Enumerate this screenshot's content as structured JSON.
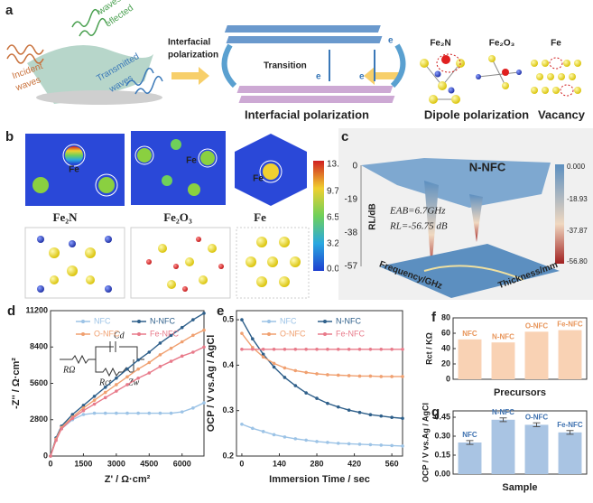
{
  "panel_a": {
    "letter": "a",
    "incident": [
      "Incident",
      "waves"
    ],
    "reflected": [
      "waves",
      "eflected"
    ],
    "transmitted": [
      "Transmitted",
      "waves"
    ],
    "interfacial_arrow": [
      "Interfacial",
      "polarization"
    ],
    "transition": "Transition",
    "electron": "e",
    "interfacial_caption": "Interfacial polarization",
    "structures": [
      "Fe₂N",
      "Fe₂O₃",
      "Fe"
    ],
    "dipole_caption": "Dipole polarization",
    "vacancy_caption": "Vacancy"
  },
  "panel_b": {
    "letter": "b",
    "atom_label": "Fe",
    "names": [
      "Fe₂N",
      "Fe₂O₃",
      "Fe"
    ],
    "colorbar": [
      "13.00",
      "9.75",
      "6.50",
      "3.25",
      "0.00"
    ]
  },
  "panel_c": {
    "letter": "c",
    "sample": "N-NFC",
    "eab": "EAB=6.7GHz",
    "rl": "RL=-56.75 dB",
    "zlabel": "RL/dB",
    "xlabel": "Frequency/GHz",
    "ylabel": "Thickness/mm",
    "zticks": [
      "0",
      "-19",
      "-38",
      "-57"
    ],
    "colorbar": [
      "0.000",
      "-18.93",
      "-37.87",
      "-56.80"
    ]
  },
  "circuit": [
    "RΩ",
    "Cd",
    "Rct",
    "Zw"
  ],
  "chart_data": [
    {
      "type": "line",
      "label": "d",
      "xlabel": "Z' / Ω·cm²",
      "ylabel": "-Z'' / Ω·cm²",
      "x": [
        0,
        250,
        500,
        1000,
        1500,
        2000,
        2500,
        3000,
        3500,
        4000,
        4500,
        5000,
        5500,
        6000,
        6500,
        7000
      ],
      "xlim": [
        0,
        7000
      ],
      "xticks": [
        0,
        1500,
        3000,
        4500,
        6000
      ],
      "ylim": [
        0,
        11200
      ],
      "yticks": [
        0,
        2800,
        5600,
        8400,
        11200
      ],
      "series": [
        {
          "name": "NFC",
          "color": "#9cc3e6",
          "values": [
            0,
            1300,
            2100,
            2800,
            3200,
            3300,
            3300,
            3300,
            3300,
            3300,
            3300,
            3300,
            3300,
            3400,
            3700,
            4100
          ]
        },
        {
          "name": "N-NFC",
          "color": "#2e5f8a",
          "values": [
            0,
            1400,
            2300,
            3200,
            3900,
            4600,
            5300,
            6000,
            6700,
            7400,
            8000,
            8700,
            9300,
            9900,
            10500,
            11000
          ]
        },
        {
          "name": "O-NFC",
          "color": "#f0a070",
          "values": [
            0,
            1300,
            2200,
            3000,
            3700,
            4300,
            4900,
            5500,
            6100,
            6700,
            7200,
            7800,
            8300,
            8800,
            9300,
            9700
          ]
        },
        {
          "name": "Fe-NFC",
          "color": "#e87a8a",
          "values": [
            0,
            1200,
            2100,
            2900,
            3500,
            4000,
            4500,
            5000,
            5500,
            6000,
            6400,
            6900,
            7300,
            7700,
            8000,
            8400
          ]
        }
      ]
    },
    {
      "type": "line",
      "label": "e",
      "xlabel": "Immersion Time / sec",
      "ylabel": "OCP / V vs.Ag / AgCl",
      "x": [
        0,
        40,
        80,
        120,
        160,
        200,
        240,
        280,
        320,
        360,
        400,
        440,
        480,
        520,
        560,
        600
      ],
      "xlim": [
        -20,
        600
      ],
      "xticks": [
        0,
        140,
        280,
        420,
        560
      ],
      "ylim": [
        0.2,
        0.52
      ],
      "yticks": [
        0.2,
        0.3,
        0.4,
        0.5
      ],
      "series": [
        {
          "name": "NFC",
          "color": "#9cc3e6",
          "values": [
            0.27,
            0.261,
            0.254,
            0.247,
            0.242,
            0.238,
            0.235,
            0.232,
            0.23,
            0.228,
            0.227,
            0.226,
            0.225,
            0.224,
            0.223,
            0.222
          ]
        },
        {
          "name": "N-NFC",
          "color": "#2e5f8a",
          "values": [
            0.5,
            0.458,
            0.424,
            0.396,
            0.373,
            0.355,
            0.339,
            0.327,
            0.316,
            0.308,
            0.301,
            0.296,
            0.291,
            0.288,
            0.285,
            0.283
          ]
        },
        {
          "name": "O-NFC",
          "color": "#f0a070",
          "values": [
            0.47,
            0.439,
            0.418,
            0.404,
            0.394,
            0.388,
            0.384,
            0.381,
            0.379,
            0.378,
            0.377,
            0.376,
            0.376,
            0.375,
            0.375,
            0.375
          ]
        },
        {
          "name": "Fe-NFC",
          "color": "#e87a8a",
          "values": [
            0.435,
            0.435,
            0.435,
            0.435,
            0.435,
            0.435,
            0.435,
            0.435,
            0.435,
            0.435,
            0.435,
            0.435,
            0.435,
            0.435,
            0.435,
            0.435
          ]
        }
      ]
    },
    {
      "type": "bar",
      "label": "f",
      "xlabel": "Precursors",
      "ylabel": "Rct / KΩ",
      "categories": [
        "NFC",
        "N-NFC",
        "O-NFC",
        "Fe-NFC"
      ],
      "values": [
        52,
        48,
        62,
        64
      ],
      "color": "#f9d2b4",
      "label_color": "#e8955a",
      "ylim": [
        0,
        80
      ],
      "yticks": [
        0,
        20,
        40,
        60,
        80
      ]
    },
    {
      "type": "bar",
      "label": "g",
      "xlabel": "Sample",
      "ylabel": "OCP / V vs.Ag / AgCl",
      "categories": [
        "NFC",
        "N-NFC",
        "O-NFC",
        "Fe-NFC"
      ],
      "values": [
        0.25,
        0.43,
        0.39,
        0.33
      ],
      "errors": [
        0.015,
        0.015,
        0.015,
        0.015
      ],
      "color": "#a9c4e3",
      "label_color": "#3f72b0",
      "ylim": [
        0,
        0.5
      ],
      "yticks": [
        {
          "value": 0,
          "label": "0.00"
        },
        0.15,
        {
          "value": 0.3,
          "label": "0.30"
        },
        0.45
      ]
    }
  ]
}
